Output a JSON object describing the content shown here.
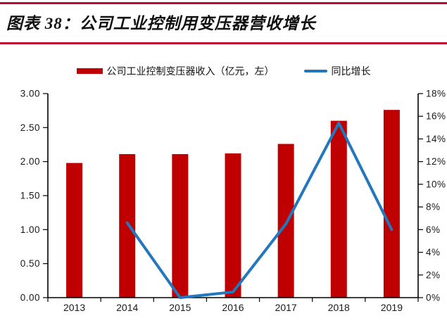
{
  "page": {
    "title": "图表 38：公司工业控制用变压器营收增长"
  },
  "colors": {
    "rule": "#BE0B31",
    "bar": "#C00000",
    "line": "#2277BD",
    "axis": "#000000"
  },
  "legend": [
    {
      "label": "公司工业控制变压器收入（亿元，左）",
      "swatch": "bar",
      "color": "#C00000"
    },
    {
      "label": "同比增长",
      "swatch": "line",
      "color": "#2277BD"
    }
  ],
  "chart_data": {
    "type": "bar+line",
    "title": "图表 38：公司工业控制用变压器营收增长",
    "categories": [
      "2013",
      "2014",
      "2015",
      "2016",
      "2017",
      "2018",
      "2019"
    ],
    "series": [
      {
        "name": "公司工业控制变压器收入（亿元，左）",
        "type": "bar",
        "axis": "left",
        "values": [
          1.98,
          2.11,
          2.11,
          2.12,
          2.26,
          2.6,
          2.76
        ]
      },
      {
        "name": "同比增长",
        "type": "line",
        "axis": "right",
        "values": [
          null,
          6.6,
          0.0,
          0.5,
          6.5,
          15.4,
          6.0
        ]
      }
    ],
    "left_axis": {
      "min": 0,
      "max": 3,
      "step": 0.5,
      "ticks": [
        "3.00",
        "2.50",
        "2.00",
        "1.50",
        "1.00",
        "0.50",
        "0.00"
      ]
    },
    "right_axis": {
      "min": 0,
      "max": 18,
      "step": 2,
      "unit": "%",
      "ticks": [
        "18%",
        "16%",
        "14%",
        "12%",
        "10%",
        "8%",
        "6%",
        "4%",
        "2%",
        "0%"
      ]
    },
    "grid": false,
    "legend_position": "top"
  }
}
